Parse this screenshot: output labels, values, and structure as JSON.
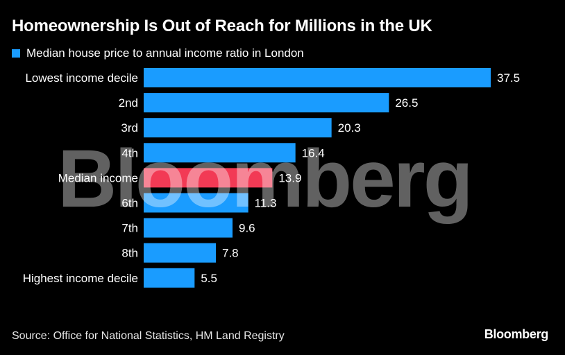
{
  "chart_data": {
    "type": "bar",
    "orientation": "horizontal",
    "title": "Homeownership Is Out of Reach for Millions in the UK",
    "legend": [
      "Median house price to annual income ratio in London"
    ],
    "categories": [
      "Lowest income decile",
      "2nd",
      "3rd",
      "4th",
      "Median income",
      "6th",
      "7th",
      "8th",
      "Highest income decile"
    ],
    "values": [
      37.5,
      26.5,
      20.3,
      16.4,
      13.9,
      11.3,
      9.6,
      7.8,
      5.5
    ],
    "value_labels": [
      "37.5",
      "26.5",
      "20.3",
      "16.4",
      "13.9",
      "11.3",
      "9.6",
      "7.8",
      "5.5"
    ],
    "highlighted_category": "Median income",
    "xlim": [
      0,
      37.5
    ],
    "grid": false,
    "xlabel": "",
    "ylabel": ""
  },
  "colors": {
    "bar": "#1a9cff",
    "highlight": "#f23a55",
    "background": "#000000",
    "text": "#ffffff"
  },
  "source": "Source: Office for National Statistics, HM Land Registry",
  "watermark": "Bloomberg",
  "brand": "Bloomberg"
}
